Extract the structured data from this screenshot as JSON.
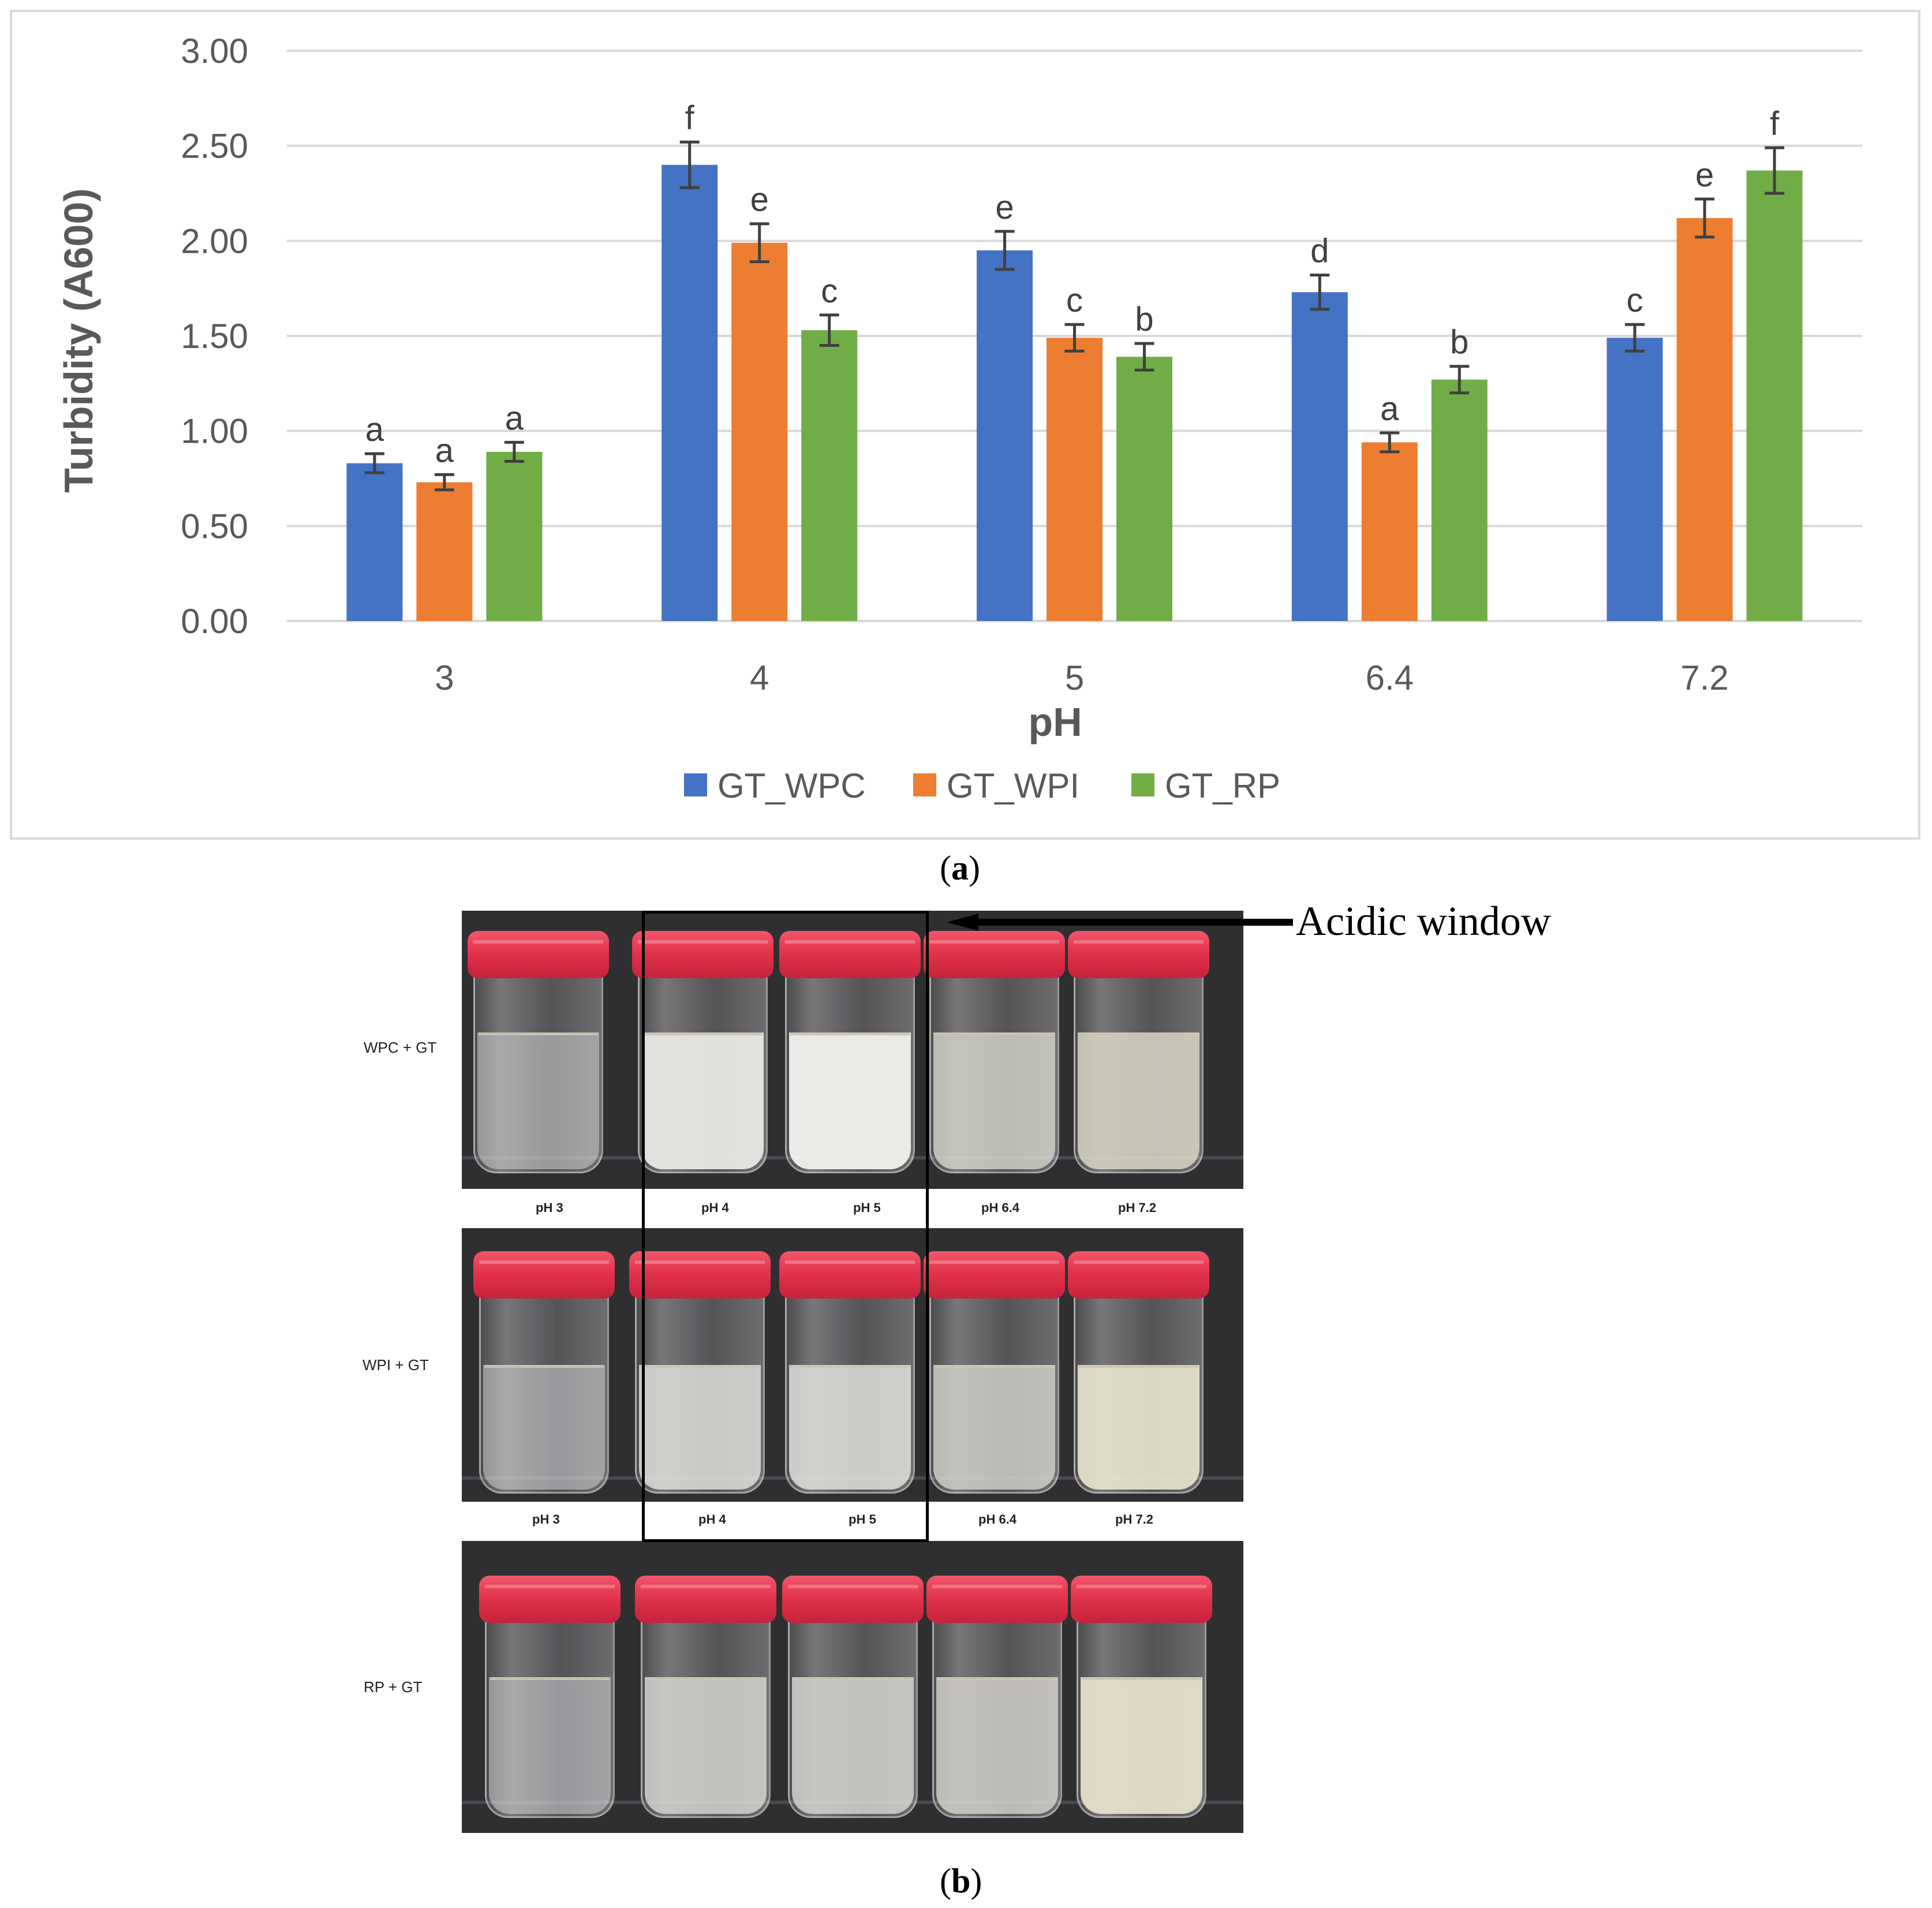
{
  "chart_data": {
    "type": "bar",
    "title": "",
    "xlabel": "pH",
    "ylabel": "Turbidity (A600)",
    "ylim": [
      0,
      3
    ],
    "yticks": [
      "0.00",
      "0.50",
      "1.00",
      "1.50",
      "2.00",
      "2.50",
      "3.00"
    ],
    "grid": true,
    "legend_position": "bottom",
    "categories": [
      "3",
      "4",
      "5",
      "6.4",
      "7.2"
    ],
    "series": [
      {
        "name": "GT_WPC",
        "color": "#4472c4",
        "values": [
          0.83,
          2.4,
          1.95,
          1.73,
          1.49
        ],
        "errors": [
          0.05,
          0.12,
          0.1,
          0.09,
          0.07
        ],
        "labels": [
          "a",
          "f",
          "e",
          "d",
          "c"
        ]
      },
      {
        "name": "GT_WPI",
        "color": "#ed7d31",
        "values": [
          0.73,
          1.99,
          1.49,
          0.94,
          2.12
        ],
        "errors": [
          0.04,
          0.1,
          0.07,
          0.05,
          0.1
        ],
        "labels": [
          "a",
          "e",
          "c",
          "a",
          "e"
        ]
      },
      {
        "name": "GT_RP",
        "color": "#70ad47",
        "values": [
          0.89,
          1.53,
          1.39,
          1.27,
          2.37
        ],
        "errors": [
          0.05,
          0.08,
          0.07,
          0.07,
          0.12
        ],
        "labels": [
          "a",
          "c",
          "b",
          "b",
          "f"
        ]
      }
    ]
  },
  "captions": {
    "a_open": "(",
    "a_letter": "a",
    "a_close": ")",
    "b_open": "(",
    "b_letter": "b",
    "b_close": ")"
  },
  "photo_panel": {
    "annotation": "Acidic window",
    "rows": [
      {
        "label": "WPC + GT",
        "ph_labels": [
          "pH 3",
          "pH 4",
          "pH 5",
          "pH 6.4",
          "pH 7.2"
        ]
      },
      {
        "label": "WPI + GT",
        "ph_labels": [
          "pH 3",
          "pH 4",
          "pH 5",
          "pH 6.4",
          "pH 7.2"
        ]
      },
      {
        "label": "RP + GT",
        "ph_labels": []
      }
    ]
  }
}
